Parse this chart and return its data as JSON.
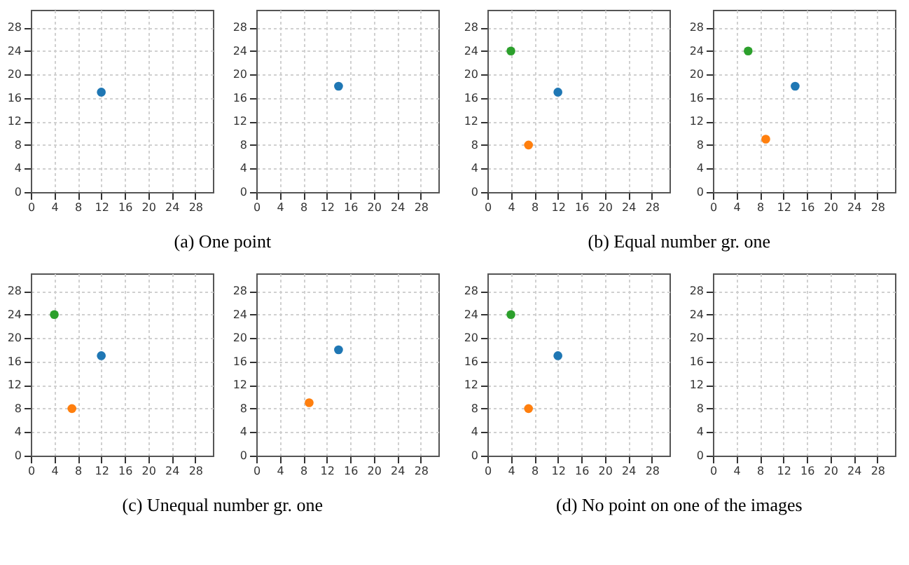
{
  "chart_data": [
    {
      "type": "scatter",
      "xlim": [
        0,
        31
      ],
      "ylim": [
        0,
        31
      ],
      "xticks": [
        0,
        4,
        8,
        12,
        16,
        20,
        24,
        28
      ],
      "yticks": [
        0,
        4,
        8,
        12,
        16,
        20,
        24,
        28
      ],
      "grid": true,
      "marker": "circle",
      "annotations": [
        "(a) One point"
      ],
      "series": [
        {
          "color": "#1f77b4",
          "x": [
            12
          ],
          "values": [
            17
          ]
        }
      ]
    },
    {
      "type": "scatter",
      "xlim": [
        0,
        31
      ],
      "ylim": [
        0,
        31
      ],
      "xticks": [
        0,
        4,
        8,
        12,
        16,
        20,
        24,
        28
      ],
      "yticks": [
        0,
        4,
        8,
        12,
        16,
        20,
        24,
        28
      ],
      "grid": true,
      "marker": "circle",
      "series": [
        {
          "color": "#1f77b4",
          "x": [
            14
          ],
          "values": [
            18
          ]
        }
      ]
    },
    {
      "type": "scatter",
      "xlim": [
        0,
        31
      ],
      "ylim": [
        0,
        31
      ],
      "xticks": [
        0,
        4,
        8,
        12,
        16,
        20,
        24,
        28
      ],
      "yticks": [
        0,
        4,
        8,
        12,
        16,
        20,
        24,
        28
      ],
      "grid": true,
      "marker": "circle",
      "annotations": [
        "(b) Equal number gr. one"
      ],
      "series": [
        {
          "color": "#1f77b4",
          "x": [
            12
          ],
          "values": [
            17
          ]
        },
        {
          "color": "#ff7f0e",
          "x": [
            7
          ],
          "values": [
            8
          ]
        },
        {
          "color": "#2ca02c",
          "x": [
            4
          ],
          "values": [
            24
          ]
        }
      ]
    },
    {
      "type": "scatter",
      "xlim": [
        0,
        31
      ],
      "ylim": [
        0,
        31
      ],
      "xticks": [
        0,
        4,
        8,
        12,
        16,
        20,
        24,
        28
      ],
      "yticks": [
        0,
        4,
        8,
        12,
        16,
        20,
        24,
        28
      ],
      "grid": true,
      "marker": "circle",
      "series": [
        {
          "color": "#1f77b4",
          "x": [
            14
          ],
          "values": [
            18
          ]
        },
        {
          "color": "#ff7f0e",
          "x": [
            9
          ],
          "values": [
            9
          ]
        },
        {
          "color": "#2ca02c",
          "x": [
            6
          ],
          "values": [
            24
          ]
        }
      ]
    },
    {
      "type": "scatter",
      "xlim": [
        0,
        31
      ],
      "ylim": [
        0,
        31
      ],
      "xticks": [
        0,
        4,
        8,
        12,
        16,
        20,
        24,
        28
      ],
      "yticks": [
        0,
        4,
        8,
        12,
        16,
        20,
        24,
        28
      ],
      "grid": true,
      "marker": "circle",
      "annotations": [
        "(c) Unequal number gr. one"
      ],
      "series": [
        {
          "color": "#1f77b4",
          "x": [
            12
          ],
          "values": [
            17
          ]
        },
        {
          "color": "#ff7f0e",
          "x": [
            7
          ],
          "values": [
            8
          ]
        },
        {
          "color": "#2ca02c",
          "x": [
            4
          ],
          "values": [
            24
          ]
        }
      ]
    },
    {
      "type": "scatter",
      "xlim": [
        0,
        31
      ],
      "ylim": [
        0,
        31
      ],
      "xticks": [
        0,
        4,
        8,
        12,
        16,
        20,
        24,
        28
      ],
      "yticks": [
        0,
        4,
        8,
        12,
        16,
        20,
        24,
        28
      ],
      "grid": true,
      "marker": "circle",
      "series": [
        {
          "color": "#1f77b4",
          "x": [
            14
          ],
          "values": [
            18
          ]
        },
        {
          "color": "#ff7f0e",
          "x": [
            9
          ],
          "values": [
            9
          ]
        }
      ]
    },
    {
      "type": "scatter",
      "xlim": [
        0,
        31
      ],
      "ylim": [
        0,
        31
      ],
      "xticks": [
        0,
        4,
        8,
        12,
        16,
        20,
        24,
        28
      ],
      "yticks": [
        0,
        4,
        8,
        12,
        16,
        20,
        24,
        28
      ],
      "grid": true,
      "marker": "circle",
      "annotations": [
        "(d) No point on one of the images"
      ],
      "series": [
        {
          "color": "#1f77b4",
          "x": [
            12
          ],
          "values": [
            17
          ]
        },
        {
          "color": "#ff7f0e",
          "x": [
            7
          ],
          "values": [
            8
          ]
        },
        {
          "color": "#2ca02c",
          "x": [
            4
          ],
          "values": [
            24
          ]
        }
      ]
    },
    {
      "type": "scatter",
      "xlim": [
        0,
        31
      ],
      "ylim": [
        0,
        31
      ],
      "xticks": [
        0,
        4,
        8,
        12,
        16,
        20,
        24,
        28
      ],
      "yticks": [
        0,
        4,
        8,
        12,
        16,
        20,
        24,
        28
      ],
      "grid": true,
      "marker": "circle"
    }
  ]
}
